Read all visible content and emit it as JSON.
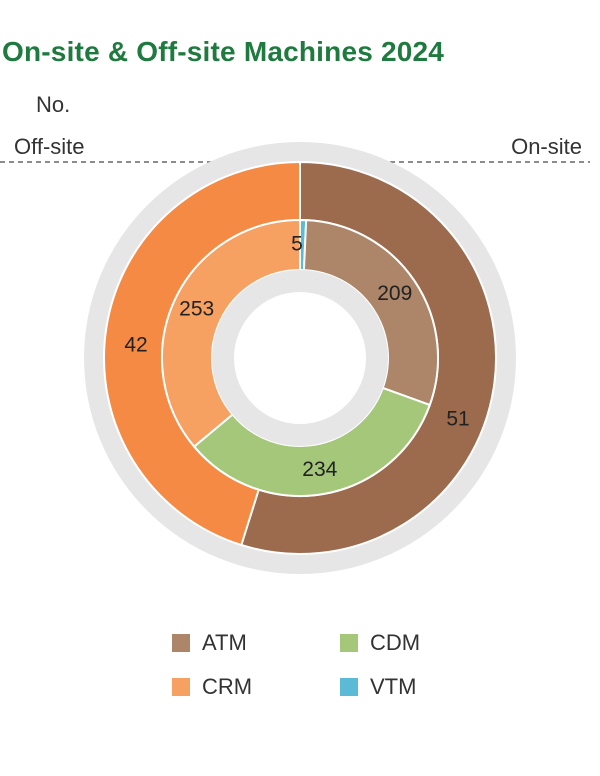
{
  "chart_data": {
    "type": "pie",
    "title": "On-site & Off-site Machines 2024",
    "unit_label": "No.",
    "side_labels": {
      "left": "Off-site",
      "right": "On-site"
    },
    "outer_ring": [
      {
        "label": "On-site",
        "value": 51,
        "color": "#9c6b4e"
      },
      {
        "label": "Off-site",
        "value": 42,
        "color": "#f58a44"
      }
    ],
    "inner_ring": [
      {
        "label": "VTM",
        "value": 5,
        "color": "#5bbbd6"
      },
      {
        "label": "ATM",
        "value": 209,
        "color": "#ad8568"
      },
      {
        "label": "CDM",
        "value": 234,
        "color": "#a4c77a"
      },
      {
        "label": "CRM",
        "value": 253,
        "color": "#f6a061"
      }
    ],
    "legend": [
      {
        "label": "ATM",
        "color": "#ad8568"
      },
      {
        "label": "CDM",
        "color": "#a4c77a"
      },
      {
        "label": "CRM",
        "color": "#f6a061"
      },
      {
        "label": "VTM",
        "color": "#5bbbd6"
      }
    ]
  }
}
